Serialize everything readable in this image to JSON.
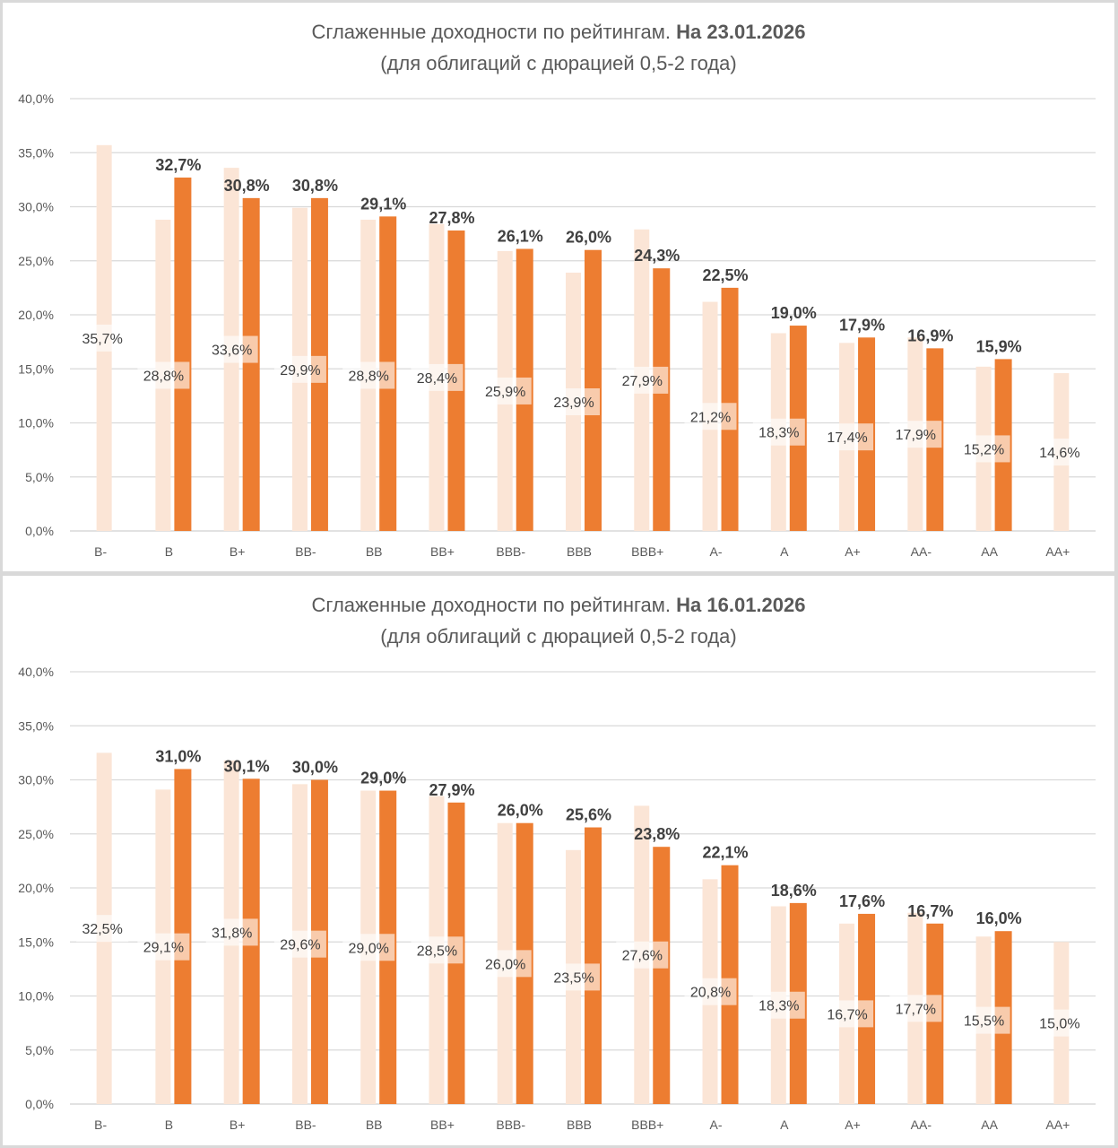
{
  "chart_data": [
    {
      "type": "bar",
      "title": "Сглаженные доходности по рейтингам.",
      "title_bold": "На 23.01.2026",
      "subtitle": "(для облигаций с дюрацией 0,5-2 года)",
      "xlabel": "",
      "ylabel": "",
      "ylim": [
        0,
        40
      ],
      "yticks": [
        "0,0%",
        "5,0%",
        "10,0%",
        "15,0%",
        "20,0%",
        "25,0%",
        "30,0%",
        "35,0%",
        "40,0%"
      ],
      "grid": true,
      "categories": [
        "B-",
        "B",
        "B+",
        "BB-",
        "BB",
        "BB+",
        "BBB-",
        "BBB",
        "BBB+",
        "A-",
        "A",
        "A+",
        "AA-",
        "AA",
        "AA+"
      ],
      "series": [
        {
          "name": "previous",
          "color": "#fbe5d6",
          "values": [
            35.7,
            28.8,
            33.6,
            29.9,
            28.8,
            28.4,
            25.9,
            23.9,
            27.9,
            21.2,
            18.3,
            17.4,
            17.9,
            15.2,
            14.6
          ],
          "labels": [
            "35,7%",
            "28,8%",
            "33,6%",
            "29,9%",
            "28,8%",
            "28,4%",
            "25,9%",
            "23,9%",
            "27,9%",
            "21,2%",
            "18,3%",
            "17,4%",
            "17,9%",
            "15,2%",
            "14,6%"
          ]
        },
        {
          "name": "current",
          "color": "#ed7d31",
          "values": [
            null,
            32.7,
            30.8,
            30.8,
            29.1,
            27.8,
            26.1,
            26.0,
            24.3,
            22.5,
            19.0,
            17.9,
            16.9,
            15.9,
            null
          ],
          "labels": [
            "",
            "32,7%",
            "30,8%",
            "30,8%",
            "29,1%",
            "27,8%",
            "26,1%",
            "26,0%",
            "24,3%",
            "22,5%",
            "19,0%",
            "17,9%",
            "16,9%",
            "15,9%",
            ""
          ]
        }
      ]
    },
    {
      "type": "bar",
      "title": "Сглаженные доходности по рейтингам.",
      "title_bold": "На 16.01.2026",
      "subtitle": "(для облигаций с дюрацией 0,5-2 года)",
      "xlabel": "",
      "ylabel": "",
      "ylim": [
        0,
        40
      ],
      "yticks": [
        "0,0%",
        "5,0%",
        "10,0%",
        "15,0%",
        "20,0%",
        "25,0%",
        "30,0%",
        "35,0%",
        "40,0%"
      ],
      "grid": true,
      "categories": [
        "B-",
        "B",
        "B+",
        "BB-",
        "BB",
        "BB+",
        "BBB-",
        "BBB",
        "BBB+",
        "A-",
        "A",
        "A+",
        "AA-",
        "AA",
        "AA+"
      ],
      "series": [
        {
          "name": "previous",
          "color": "#fbe5d6",
          "values": [
            32.5,
            29.1,
            31.8,
            29.6,
            29.0,
            28.5,
            26.0,
            23.5,
            27.6,
            20.8,
            18.3,
            16.7,
            17.7,
            15.5,
            15.0
          ],
          "labels": [
            "32,5%",
            "29,1%",
            "31,8%",
            "29,6%",
            "29,0%",
            "28,5%",
            "26,0%",
            "23,5%",
            "27,6%",
            "20,8%",
            "18,3%",
            "16,7%",
            "17,7%",
            "15,5%",
            "15,0%"
          ]
        },
        {
          "name": "current",
          "color": "#ed7d31",
          "values": [
            null,
            31.0,
            30.1,
            30.0,
            29.0,
            27.9,
            26.0,
            25.6,
            23.8,
            22.1,
            18.6,
            17.6,
            16.7,
            16.0,
            null
          ],
          "labels": [
            "",
            "31,0%",
            "30,1%",
            "30,0%",
            "29,0%",
            "27,9%",
            "26,0%",
            "25,6%",
            "23,8%",
            "22,1%",
            "18,6%",
            "17,6%",
            "16,7%",
            "16,0%",
            ""
          ]
        }
      ]
    }
  ]
}
